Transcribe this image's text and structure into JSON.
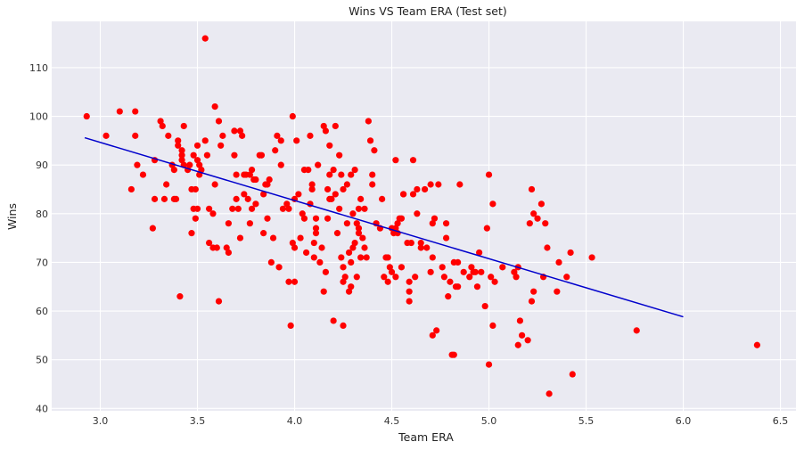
{
  "chart_data": {
    "type": "scatter",
    "title": "Wins VS Team ERA (Test set)",
    "xlabel": "Team ERA",
    "ylabel": "Wins",
    "xlim": [
      2.75,
      6.58
    ],
    "ylim": [
      39.5,
      119.5
    ],
    "xticks": [
      3.0,
      3.5,
      4.0,
      4.5,
      5.0,
      5.5,
      6.0,
      6.5
    ],
    "xtick_labels": [
      "3.0",
      "3.5",
      "4.0",
      "4.5",
      "5.0",
      "5.5",
      "6.0",
      "6.5"
    ],
    "yticks": [
      40,
      50,
      60,
      70,
      80,
      90,
      100,
      110
    ],
    "ytick_labels": [
      "40",
      "50",
      "60",
      "70",
      "80",
      "90",
      "100",
      "110"
    ],
    "grid": true,
    "background_color": "#eaeaf2",
    "point_color": "#ff0000",
    "line_color": "#0000cc",
    "regression_line": {
      "x": [
        2.92,
        6.0
      ],
      "y": [
        95.6,
        58.8
      ]
    },
    "points": [
      [
        2.93,
        100
      ],
      [
        3.03,
        96
      ],
      [
        3.1,
        101
      ],
      [
        3.16,
        85
      ],
      [
        3.18,
        101
      ],
      [
        3.18,
        96
      ],
      [
        3.19,
        90
      ],
      [
        3.22,
        88
      ],
      [
        3.27,
        77
      ],
      [
        3.28,
        83
      ],
      [
        3.28,
        91
      ],
      [
        3.31,
        99
      ],
      [
        3.32,
        98
      ],
      [
        3.33,
        83
      ],
      [
        3.34,
        86
      ],
      [
        3.35,
        96
      ],
      [
        3.37,
        90
      ],
      [
        3.38,
        83
      ],
      [
        3.38,
        89
      ],
      [
        3.39,
        83
      ],
      [
        3.4,
        95
      ],
      [
        3.4,
        94
      ],
      [
        3.41,
        63
      ],
      [
        3.42,
        93
      ],
      [
        3.42,
        92
      ],
      [
        3.42,
        91
      ],
      [
        3.43,
        98
      ],
      [
        3.43,
        90
      ],
      [
        3.45,
        89
      ],
      [
        3.46,
        90
      ],
      [
        3.47,
        85
      ],
      [
        3.47,
        76
      ],
      [
        3.48,
        81
      ],
      [
        3.48,
        92
      ],
      [
        3.49,
        85
      ],
      [
        3.49,
        79
      ],
      [
        3.5,
        91
      ],
      [
        3.5,
        94
      ],
      [
        3.5,
        81
      ],
      [
        3.51,
        88
      ],
      [
        3.51,
        90
      ],
      [
        3.52,
        89
      ],
      [
        3.54,
        116
      ],
      [
        3.54,
        95
      ],
      [
        3.55,
        92
      ],
      [
        3.56,
        74
      ],
      [
        3.56,
        81
      ],
      [
        3.58,
        80
      ],
      [
        3.58,
        73
      ],
      [
        3.59,
        102
      ],
      [
        3.59,
        86
      ],
      [
        3.6,
        73
      ],
      [
        3.61,
        99
      ],
      [
        3.61,
        62
      ],
      [
        3.62,
        94
      ],
      [
        3.63,
        96
      ],
      [
        3.65,
        73
      ],
      [
        3.66,
        72
      ],
      [
        3.66,
        78
      ],
      [
        3.68,
        81
      ],
      [
        3.69,
        92
      ],
      [
        3.69,
        97
      ],
      [
        3.7,
        88
      ],
      [
        3.7,
        83
      ],
      [
        3.71,
        81
      ],
      [
        3.72,
        97
      ],
      [
        3.72,
        75
      ],
      [
        3.73,
        96
      ],
      [
        3.74,
        84
      ],
      [
        3.74,
        88
      ],
      [
        3.75,
        88
      ],
      [
        3.76,
        83
      ],
      [
        3.77,
        88
      ],
      [
        3.77,
        78
      ],
      [
        3.78,
        89
      ],
      [
        3.78,
        81
      ],
      [
        3.79,
        87
      ],
      [
        3.8,
        87
      ],
      [
        3.8,
        82
      ],
      [
        3.82,
        92
      ],
      [
        3.83,
        92
      ],
      [
        3.84,
        76
      ],
      [
        3.84,
        84
      ],
      [
        3.85,
        86
      ],
      [
        3.86,
        79
      ],
      [
        3.86,
        86
      ],
      [
        3.87,
        87
      ],
      [
        3.88,
        70
      ],
      [
        3.89,
        75
      ],
      [
        3.9,
        93
      ],
      [
        3.91,
        96
      ],
      [
        3.92,
        69
      ],
      [
        3.93,
        95
      ],
      [
        3.93,
        90
      ],
      [
        3.94,
        81
      ],
      [
        3.96,
        82
      ],
      [
        3.97,
        81
      ],
      [
        3.97,
        66
      ],
      [
        3.98,
        57
      ],
      [
        3.99,
        100
      ],
      [
        3.99,
        74
      ],
      [
        4.0,
        66
      ],
      [
        4.0,
        83
      ],
      [
        4.0,
        73
      ],
      [
        4.01,
        95
      ],
      [
        4.02,
        84
      ],
      [
        4.03,
        75
      ],
      [
        4.04,
        80
      ],
      [
        4.05,
        89
      ],
      [
        4.05,
        79
      ],
      [
        4.06,
        72
      ],
      [
        4.07,
        89
      ],
      [
        4.08,
        82
      ],
      [
        4.08,
        96
      ],
      [
        4.09,
        86
      ],
      [
        4.09,
        85
      ],
      [
        4.1,
        71
      ],
      [
        4.1,
        74
      ],
      [
        4.11,
        77
      ],
      [
        4.11,
        76
      ],
      [
        4.11,
        79
      ],
      [
        4.12,
        90
      ],
      [
        4.13,
        70
      ],
      [
        4.14,
        73
      ],
      [
        4.15,
        64
      ],
      [
        4.15,
        98
      ],
      [
        4.16,
        97
      ],
      [
        4.16,
        68
      ],
      [
        4.17,
        85
      ],
      [
        4.17,
        79
      ],
      [
        4.18,
        83
      ],
      [
        4.18,
        88
      ],
      [
        4.18,
        94
      ],
      [
        4.19,
        83
      ],
      [
        4.2,
        89
      ],
      [
        4.2,
        58
      ],
      [
        4.21,
        98
      ],
      [
        4.21,
        84
      ],
      [
        4.22,
        76
      ],
      [
        4.23,
        92
      ],
      [
        4.23,
        81
      ],
      [
        4.24,
        88
      ],
      [
        4.24,
        71
      ],
      [
        4.25,
        85
      ],
      [
        4.25,
        69
      ],
      [
        4.25,
        66
      ],
      [
        4.25,
        57
      ],
      [
        4.26,
        67
      ],
      [
        4.27,
        86
      ],
      [
        4.27,
        78
      ],
      [
        4.28,
        64
      ],
      [
        4.28,
        72
      ],
      [
        4.29,
        65
      ],
      [
        4.29,
        88
      ],
      [
        4.29,
        70
      ],
      [
        4.3,
        80
      ],
      [
        4.3,
        73
      ],
      [
        4.31,
        89
      ],
      [
        4.31,
        74
      ],
      [
        4.32,
        67
      ],
      [
        4.32,
        78
      ],
      [
        4.33,
        81
      ],
      [
        4.33,
        77
      ],
      [
        4.33,
        76
      ],
      [
        4.34,
        83
      ],
      [
        4.34,
        71
      ],
      [
        4.35,
        75
      ],
      [
        4.36,
        81
      ],
      [
        4.36,
        73
      ],
      [
        4.37,
        71
      ],
      [
        4.38,
        99
      ],
      [
        4.39,
        95
      ],
      [
        4.4,
        88
      ],
      [
        4.4,
        86
      ],
      [
        4.41,
        93
      ],
      [
        4.42,
        78
      ],
      [
        4.44,
        77
      ],
      [
        4.45,
        83
      ],
      [
        4.46,
        67
      ],
      [
        4.47,
        71
      ],
      [
        4.48,
        71
      ],
      [
        4.48,
        66
      ],
      [
        4.49,
        69
      ],
      [
        4.5,
        68
      ],
      [
        4.5,
        77
      ],
      [
        4.51,
        76
      ],
      [
        4.52,
        67
      ],
      [
        4.52,
        91
      ],
      [
        4.52,
        77
      ],
      [
        4.53,
        76
      ],
      [
        4.53,
        78
      ],
      [
        4.54,
        79
      ],
      [
        4.55,
        69
      ],
      [
        4.55,
        79
      ],
      [
        4.56,
        84
      ],
      [
        4.56,
        84
      ],
      [
        4.58,
        74
      ],
      [
        4.59,
        66
      ],
      [
        4.59,
        62
      ],
      [
        4.59,
        64
      ],
      [
        4.6,
        74
      ],
      [
        4.61,
        84
      ],
      [
        4.61,
        91
      ],
      [
        4.62,
        67
      ],
      [
        4.63,
        80
      ],
      [
        4.63,
        85
      ],
      [
        4.65,
        74
      ],
      [
        4.65,
        73
      ],
      [
        4.67,
        85
      ],
      [
        4.68,
        73
      ],
      [
        4.7,
        68
      ],
      [
        4.7,
        86
      ],
      [
        4.71,
        78
      ],
      [
        4.71,
        55
      ],
      [
        4.71,
        71
      ],
      [
        4.72,
        79
      ],
      [
        4.73,
        56
      ],
      [
        4.74,
        86
      ],
      [
        4.76,
        69
      ],
      [
        4.77,
        67
      ],
      [
        4.78,
        78
      ],
      [
        4.78,
        75
      ],
      [
        4.79,
        63
      ],
      [
        4.8,
        66
      ],
      [
        4.81,
        51
      ],
      [
        4.82,
        51
      ],
      [
        4.82,
        70
      ],
      [
        4.83,
        65
      ],
      [
        4.84,
        65
      ],
      [
        4.84,
        70
      ],
      [
        4.85,
        86
      ],
      [
        4.87,
        68
      ],
      [
        4.9,
        67
      ],
      [
        4.91,
        69
      ],
      [
        4.92,
        68
      ],
      [
        4.93,
        68
      ],
      [
        4.94,
        65
      ],
      [
        4.95,
        72
      ],
      [
        4.96,
        68
      ],
      [
        4.98,
        61
      ],
      [
        4.99,
        77
      ],
      [
        5.0,
        49
      ],
      [
        5.0,
        88
      ],
      [
        5.01,
        67
      ],
      [
        5.02,
        57
      ],
      [
        5.02,
        82
      ],
      [
        5.03,
        66
      ],
      [
        5.07,
        69
      ],
      [
        5.13,
        68
      ],
      [
        5.14,
        67
      ],
      [
        5.15,
        69
      ],
      [
        5.15,
        53
      ],
      [
        5.16,
        58
      ],
      [
        5.17,
        55
      ],
      [
        5.2,
        54
      ],
      [
        5.21,
        78
      ],
      [
        5.22,
        62
      ],
      [
        5.22,
        85
      ],
      [
        5.23,
        64
      ],
      [
        5.23,
        80
      ],
      [
        5.25,
        79
      ],
      [
        5.27,
        82
      ],
      [
        5.28,
        67
      ],
      [
        5.29,
        78
      ],
      [
        5.3,
        73
      ],
      [
        5.31,
        43
      ],
      [
        5.35,
        64
      ],
      [
        5.36,
        70
      ],
      [
        5.4,
        67
      ],
      [
        5.42,
        72
      ],
      [
        5.43,
        47
      ],
      [
        5.53,
        71
      ],
      [
        5.76,
        56
      ],
      [
        6.38,
        53
      ]
    ]
  }
}
